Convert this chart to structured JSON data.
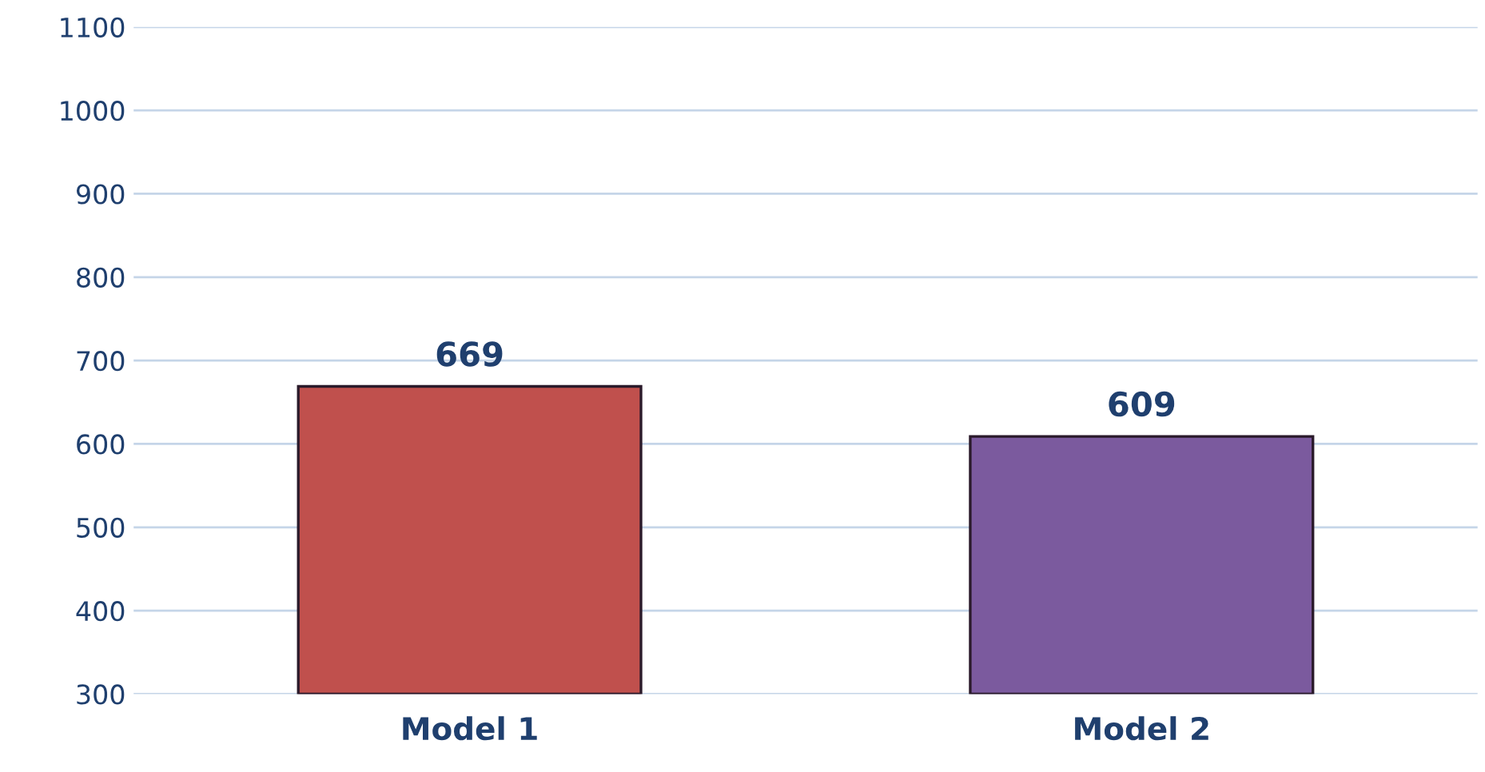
{
  "chart_data": {
    "type": "bar",
    "categories": [
      "Model 1",
      "Model 2"
    ],
    "values": [
      669,
      609
    ],
    "colors": [
      "#c0504d",
      "#7b5a9e"
    ],
    "ylim": [
      300,
      1100
    ],
    "yticks": [
      300,
      400,
      500,
      600,
      700,
      800,
      900,
      1000,
      1100
    ],
    "grid": "y",
    "data_labels": true
  }
}
